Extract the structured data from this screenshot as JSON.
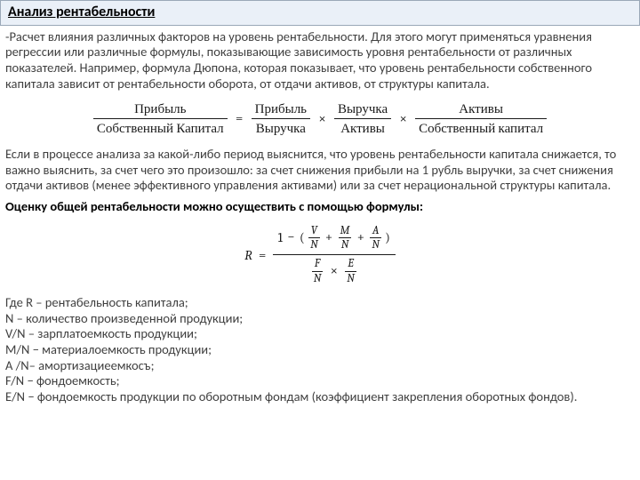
{
  "header": {
    "title": "Анализ рентабельности"
  },
  "para1": "-Расчет влияния различных факторов на уровень рентабельности. Для этого могут применяться уравнения регрессии или различные формулы, показывающие зависимость уровня рентабельности от различных показателей. Например, формула Дюпона, которая показывает, что уровень рентабельности собственного капитала зависит от рентабельности оборота, от отдачи активов, от структуры капитала.",
  "dupont": {
    "t1n": "Прибыль",
    "t1d": "Собственный Капитал",
    "t2n": "Прибыль",
    "t2d": "Выручка",
    "t3n": "Выручка",
    "t3d": "Активы",
    "t4n": "Активы",
    "t4d": "Собственный капитал",
    "eq": "=",
    "mul": "×"
  },
  "para2": "Если в процессе анализа за какой-либо период выяснится, что уровень рентабельности капитала снижается, то важно выяснить, за счет чего это произошло: за счет снижения прибыли на 1 рубль выручки, за счет снижения отдачи активов (менее эффективного управления активами) или за счет нерациональной структуры капитала.",
  "bold": "Оценку общей рентабельности можно осуществить с помощью формулы:",
  "formula2": {
    "R": "R",
    "eq": "=",
    "one": "1",
    "minus": "−",
    "lp": "(",
    "rp": ")",
    "plus": "+",
    "mul": "×",
    "V": "V",
    "M": "M",
    "A": "A",
    "N": "N",
    "F": "F",
    "E": "E"
  },
  "defs": {
    "intro": "Где R – рентабельность капитала;",
    "d1": "N – количество произведенной продукции;",
    "d2": "V/N – зарплатоемкость продукции;",
    "d3": "M/N − материалоемкость продукции;",
    "d4": "A /N– амортизациеемкосъ;",
    "d5": "F/N − фондоемкость;",
    "d6": "E/N − фондоемкость продукции по оборотным фондам (коэффициент закрепления оборотных фондов)."
  }
}
